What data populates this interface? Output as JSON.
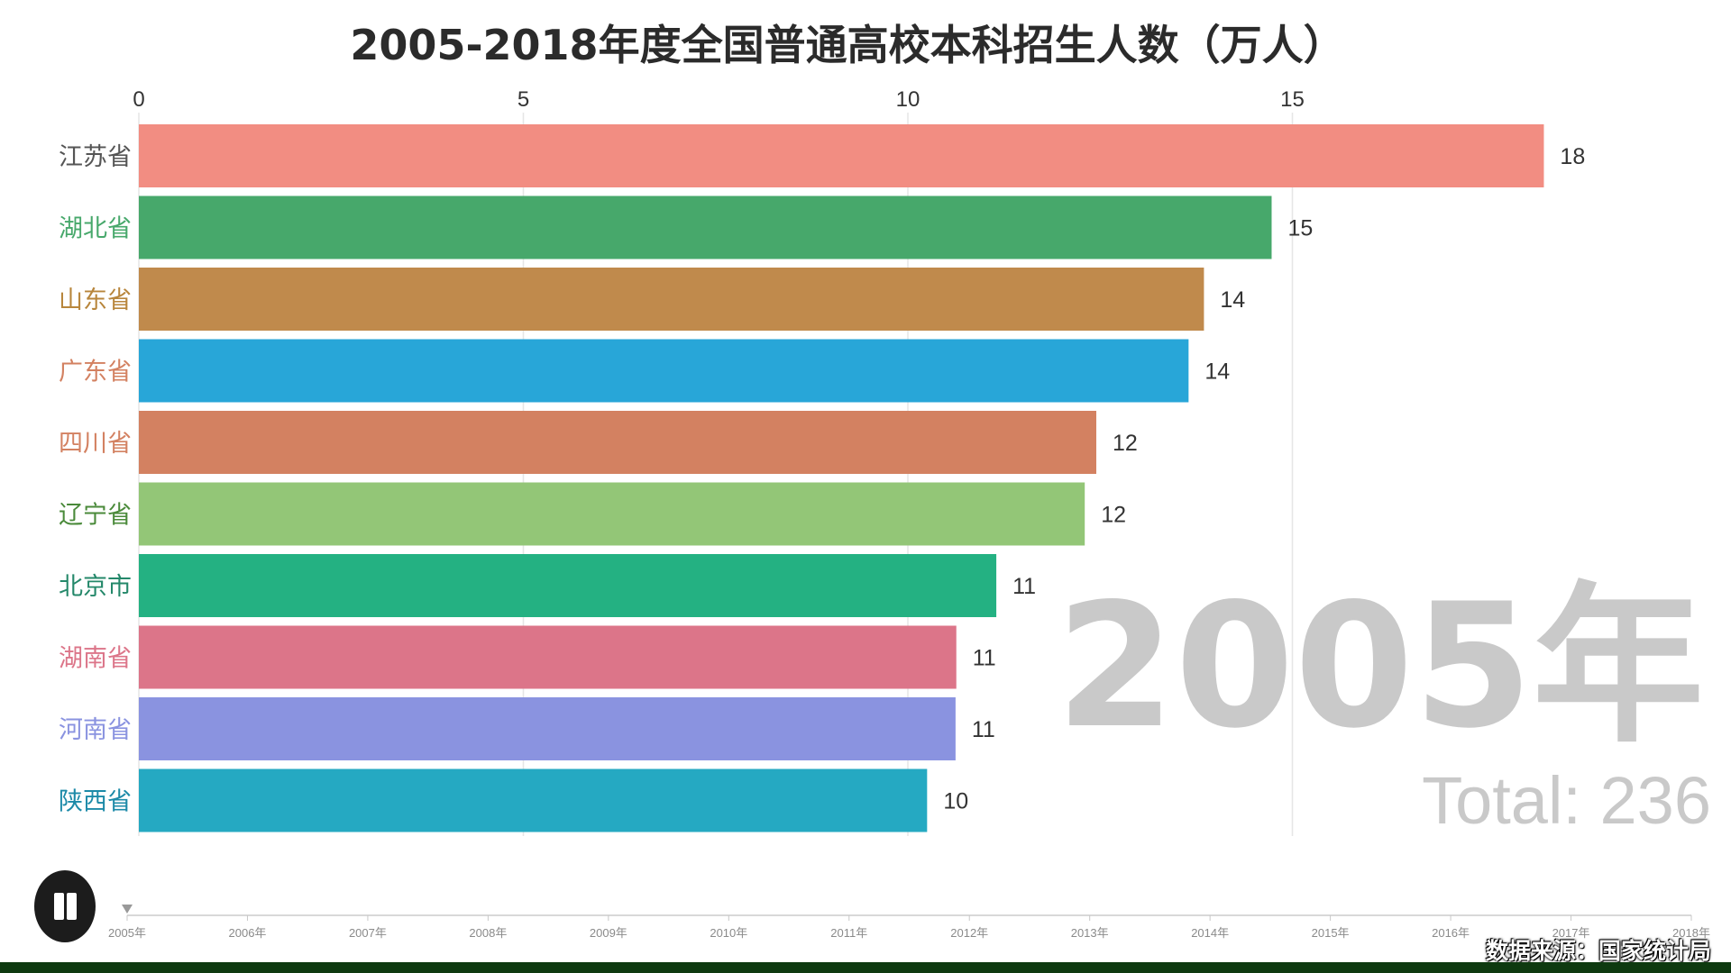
{
  "chart_data": {
    "type": "bar",
    "orientation": "horizontal",
    "title": "2005-2018年度全国普通高校本科招生人数（万人）",
    "categories": [
      "江苏省",
      "湖北省",
      "山东省",
      "广东省",
      "四川省",
      "辽宁省",
      "北京市",
      "湖南省",
      "河南省",
      "陕西省"
    ],
    "values": [
      18.27,
      14.73,
      13.85,
      13.65,
      12.45,
      12.3,
      11.15,
      10.63,
      10.62,
      10.25
    ],
    "value_labels": [
      "18",
      "15",
      "14",
      "14",
      "12",
      "12",
      "11",
      "11",
      "11",
      "10"
    ],
    "colors": [
      "#f28d82",
      "#47a86b",
      "#c08a4c",
      "#28a6d8",
      "#d38161",
      "#93c677",
      "#24b182",
      "#dc7589",
      "#8a93e0",
      "#25a9c2"
    ],
    "label_colors": [
      "#555555",
      "#47a86b",
      "#b8863c",
      "#d38161",
      "#d38161",
      "#4a8a3a",
      "#24886a",
      "#dc7589",
      "#8a93e0",
      "#1c8aa8"
    ],
    "x_ticks": [
      0,
      5,
      10,
      15
    ],
    "xlim": [
      0,
      20
    ],
    "current_year_label": "2005年",
    "total_label": "Total: 236"
  },
  "timeline": {
    "years": [
      "2005年",
      "2006年",
      "2007年",
      "2008年",
      "2009年",
      "2010年",
      "2011年",
      "2012年",
      "2013年",
      "2014年",
      "2015年",
      "2016年",
      "2017年",
      "2018年"
    ],
    "current_index": 0
  },
  "controls": {
    "play_pause_icon": "pause-icon"
  },
  "source_text": "数据来源：国家统计局"
}
